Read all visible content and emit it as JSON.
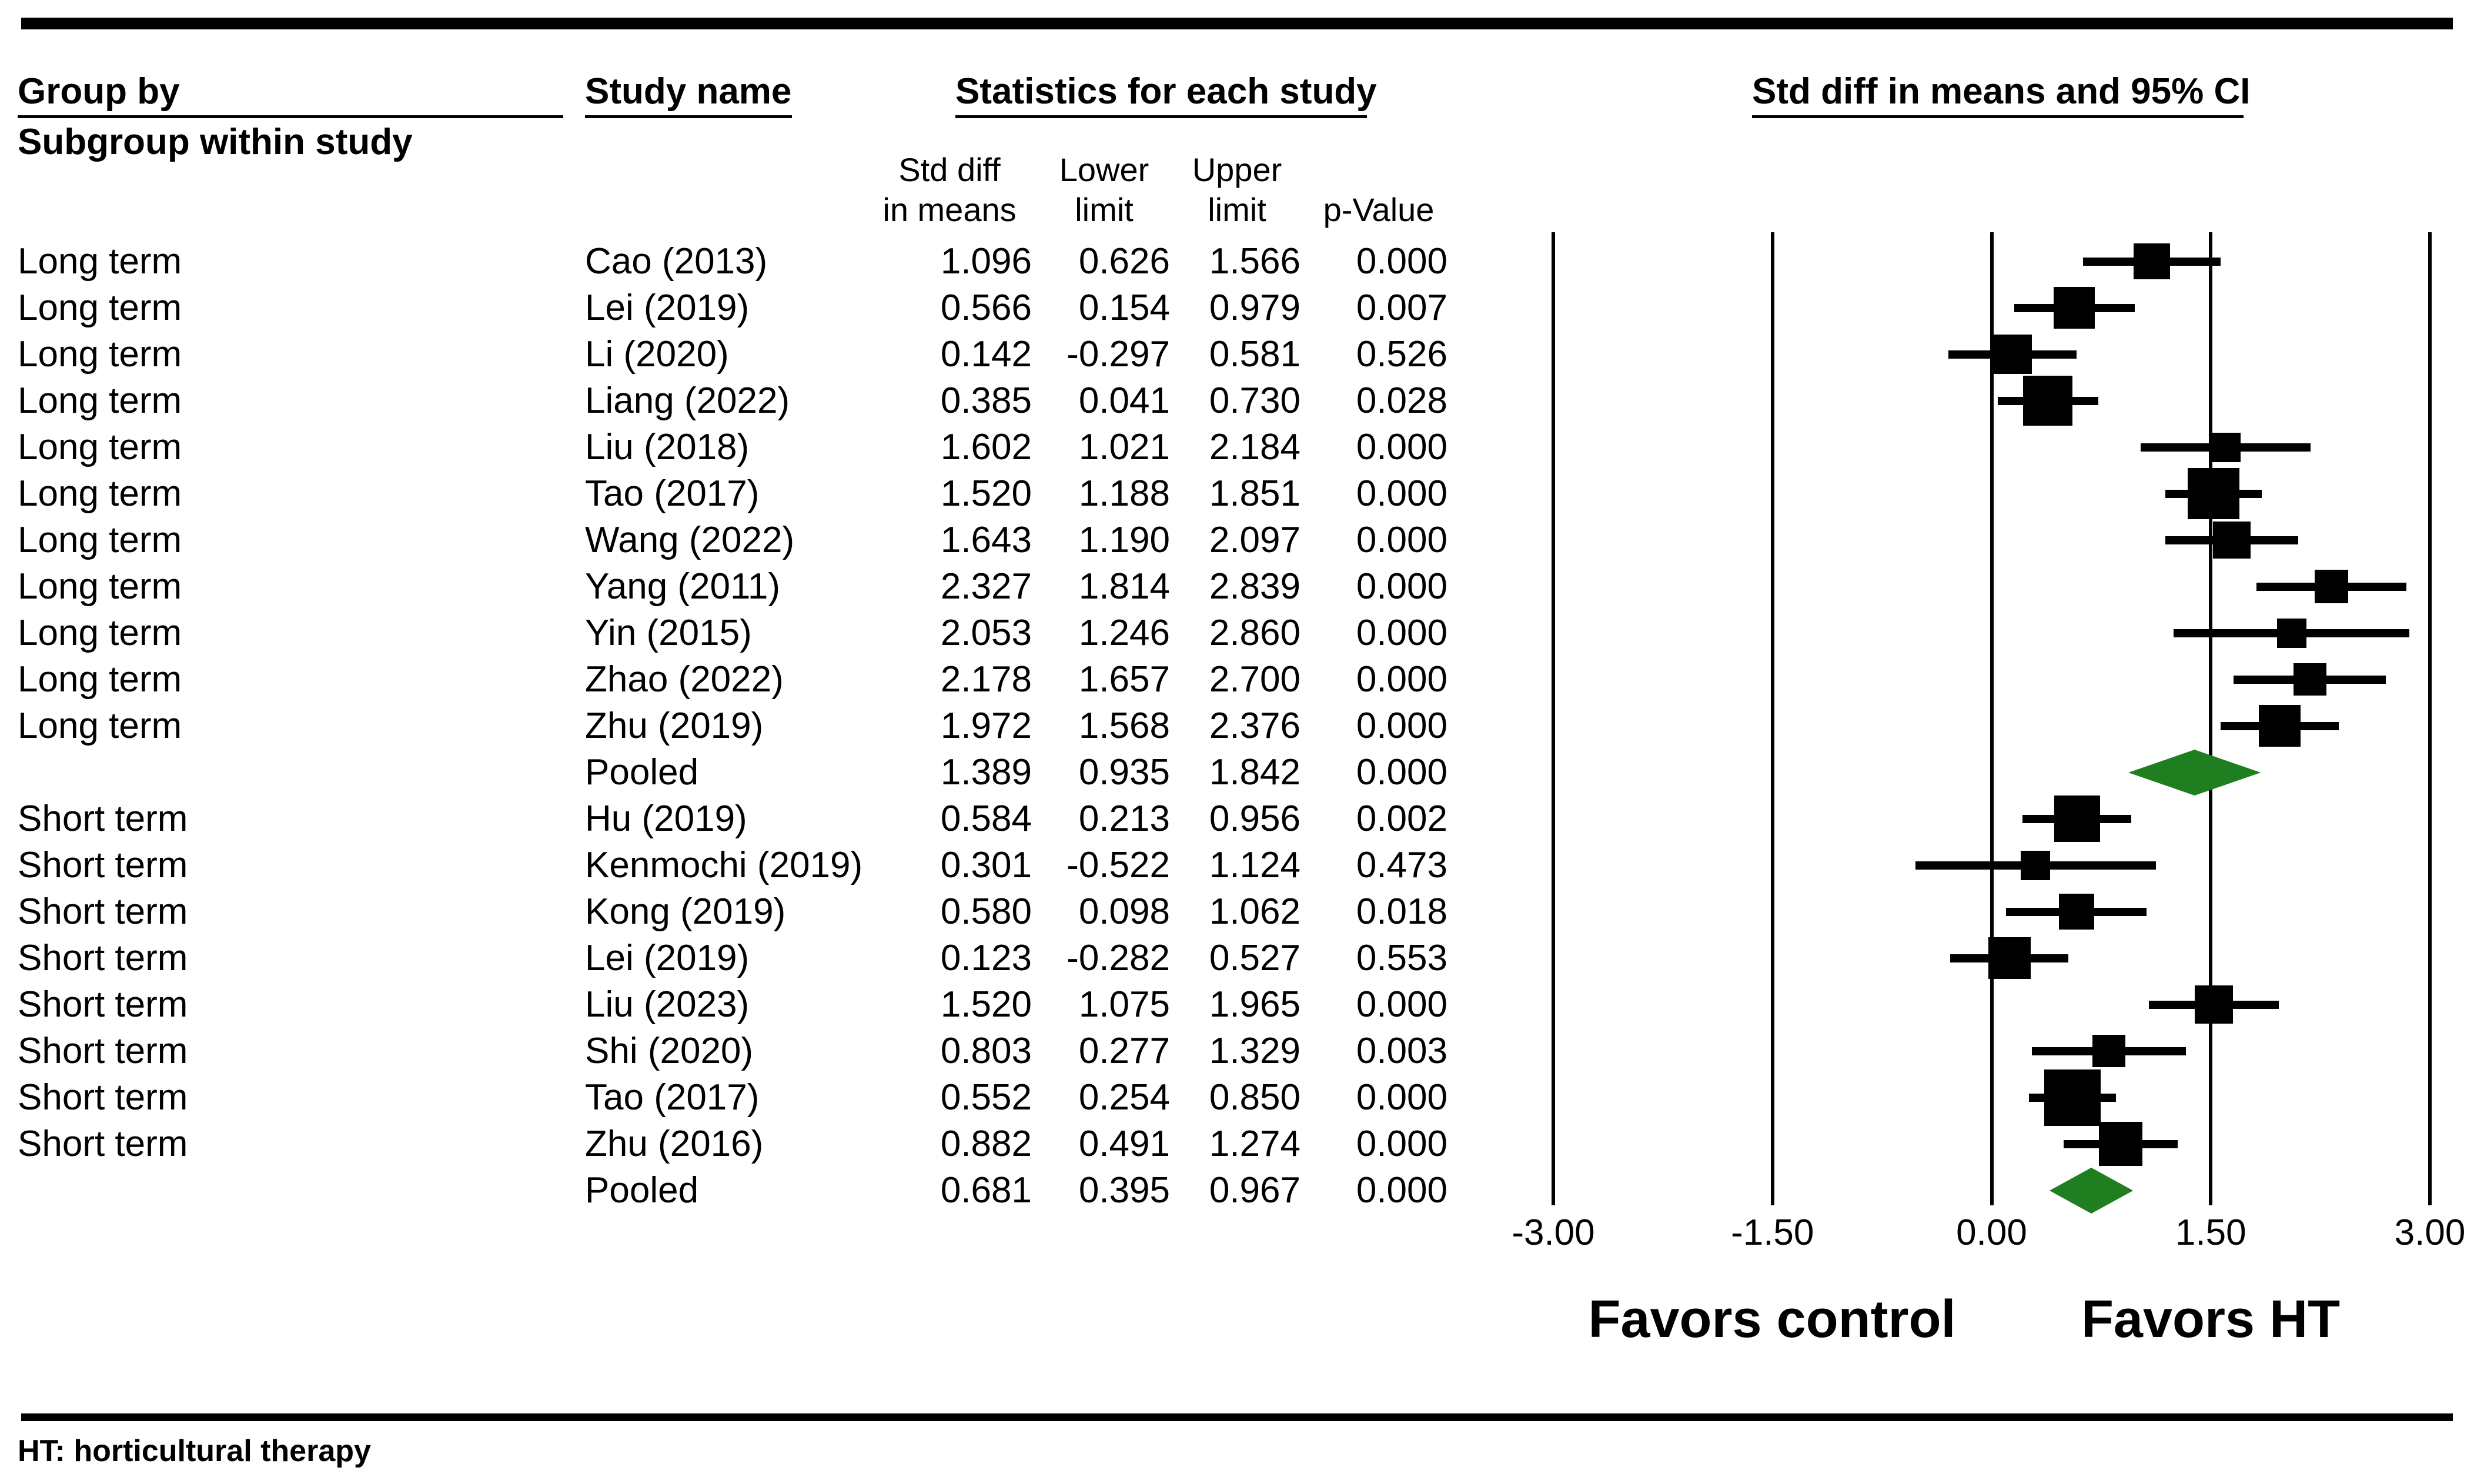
{
  "table_headers": {
    "group_by": "Group by",
    "subgroup": "Subgroup within study",
    "study_name": "Study name",
    "stats": "Statistics for each study",
    "col_d1": "Std diff",
    "col_d2": "in means",
    "col_lo1": "Lower",
    "col_lo2": "limit",
    "col_hi1": "Upper",
    "col_hi2": "limit",
    "col_p": "p-Value"
  },
  "footnote": "HT: horticultural therapy",
  "chart_data": {
    "type": "scatter",
    "subtype": "forest-plot",
    "title": "Std diff in means and 95% CI",
    "xlim": [
      -3,
      3
    ],
    "tick_values": [
      -3,
      -1.5,
      0,
      1.5,
      3
    ],
    "tick_labels": [
      "-3.00",
      "-1.50",
      "0.00",
      "1.50",
      "3.00"
    ],
    "favors_left": "Favors control",
    "favors_right": "Favors HT",
    "grid": "vertical-lines-at-ticks",
    "legend_position": "none",
    "marker_color": "#000000",
    "diamond_color": "#1f7e20",
    "rows": [
      {
        "group": "Long term",
        "study": "Cao (2013)",
        "std_diff": "1.096",
        "lower": "0.626",
        "upper": "1.566",
        "p": "0.000",
        "pooled": false
      },
      {
        "group": "Long term",
        "study": "Lei (2019)",
        "std_diff": "0.566",
        "lower": "0.154",
        "upper": "0.979",
        "p": "0.007",
        "pooled": false
      },
      {
        "group": "Long term",
        "study": "Li (2020)",
        "std_diff": "0.142",
        "lower": "-0.297",
        "upper": "0.581",
        "p": "0.526",
        "pooled": false
      },
      {
        "group": "Long term",
        "study": "Liang (2022)",
        "std_diff": "0.385",
        "lower": "0.041",
        "upper": "0.730",
        "p": "0.028",
        "pooled": false
      },
      {
        "group": "Long term",
        "study": "Liu (2018)",
        "std_diff": "1.602",
        "lower": "1.021",
        "upper": "2.184",
        "p": "0.000",
        "pooled": false
      },
      {
        "group": "Long term",
        "study": "Tao (2017)",
        "std_diff": "1.520",
        "lower": "1.188",
        "upper": "1.851",
        "p": "0.000",
        "pooled": false
      },
      {
        "group": "Long term",
        "study": "Wang (2022)",
        "std_diff": "1.643",
        "lower": "1.190",
        "upper": "2.097",
        "p": "0.000",
        "pooled": false
      },
      {
        "group": "Long term",
        "study": "Yang (2011)",
        "std_diff": "2.327",
        "lower": "1.814",
        "upper": "2.839",
        "p": "0.000",
        "pooled": false
      },
      {
        "group": "Long term",
        "study": "Yin (2015)",
        "std_diff": "2.053",
        "lower": "1.246",
        "upper": "2.860",
        "p": "0.000",
        "pooled": false
      },
      {
        "group": "Long term",
        "study": "Zhao (2022)",
        "std_diff": "2.178",
        "lower": "1.657",
        "upper": "2.700",
        "p": "0.000",
        "pooled": false
      },
      {
        "group": "Long term",
        "study": "Zhu (2019)",
        "std_diff": "1.972",
        "lower": "1.568",
        "upper": "2.376",
        "p": "0.000",
        "pooled": false
      },
      {
        "group": "",
        "study": "Pooled",
        "std_diff": "1.389",
        "lower": "0.935",
        "upper": "1.842",
        "p": "0.000",
        "pooled": true
      },
      {
        "group": "Short term",
        "study": "Hu (2019)",
        "std_diff": "0.584",
        "lower": "0.213",
        "upper": "0.956",
        "p": "0.002",
        "pooled": false
      },
      {
        "group": "Short term",
        "study": "Kenmochi (2019)",
        "std_diff": "0.301",
        "lower": "-0.522",
        "upper": "1.124",
        "p": "0.473",
        "pooled": false
      },
      {
        "group": "Short term",
        "study": "Kong (2019)",
        "std_diff": "0.580",
        "lower": "0.098",
        "upper": "1.062",
        "p": "0.018",
        "pooled": false
      },
      {
        "group": "Short term",
        "study": "Lei (2019)",
        "std_diff": "0.123",
        "lower": "-0.282",
        "upper": "0.527",
        "p": "0.553",
        "pooled": false
      },
      {
        "group": "Short term",
        "study": "Liu (2023)",
        "std_diff": "1.520",
        "lower": "1.075",
        "upper": "1.965",
        "p": "0.000",
        "pooled": false
      },
      {
        "group": "Short term",
        "study": "Shi (2020)",
        "std_diff": "0.803",
        "lower": "0.277",
        "upper": "1.329",
        "p": "0.003",
        "pooled": false
      },
      {
        "group": "Short term",
        "study": "Tao (2017)",
        "std_diff": "0.552",
        "lower": "0.254",
        "upper": "0.850",
        "p": "0.000",
        "pooled": false
      },
      {
        "group": "Short term",
        "study": "Zhu (2016)",
        "std_diff": "0.882",
        "lower": "0.491",
        "upper": "1.274",
        "p": "0.000",
        "pooled": false
      },
      {
        "group": "",
        "study": "Pooled",
        "std_diff": "0.681",
        "lower": "0.395",
        "upper": "0.967",
        "p": "0.000",
        "pooled": true
      }
    ]
  }
}
